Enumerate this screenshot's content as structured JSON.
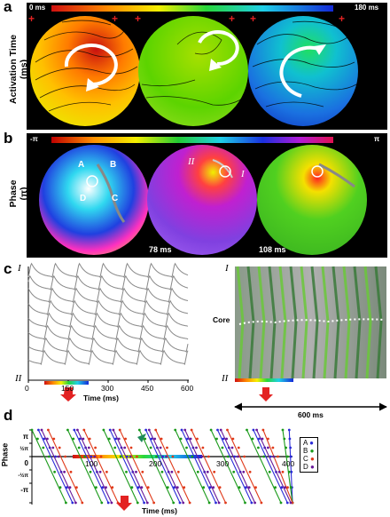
{
  "panels": {
    "a": {
      "letter": "a",
      "ylabel_line1": "Activation Time",
      "ylabel_line2": "(ms)",
      "scale_min": "0 ms",
      "scale_max": "180 ms",
      "stim_marker": "+"
    },
    "b": {
      "letter": "b",
      "ylabel_line1": "Phase",
      "ylabel_line2": "(π)",
      "scale_min": "-π",
      "scale_max": "π",
      "site_labels": [
        "A",
        "B",
        "C",
        "D"
      ],
      "roman_1": "I",
      "roman_2": "II",
      "time_2": "78 ms",
      "time_3": "108 ms"
    },
    "c": {
      "letter": "c",
      "top_label": "I",
      "bottom_label": "II",
      "xlabel": "Time (ms)",
      "core_label": "Core",
      "duration_label": "600 ms"
    },
    "d": {
      "letter": "d",
      "ylabel": "Phase",
      "xlabel": "Time (ms)",
      "legend": [
        "A",
        "B",
        "C",
        "D"
      ]
    }
  },
  "colors": {
    "A": "#2b2bd8",
    "B": "#1a9a1a",
    "C": "#e03a1a",
    "D": "#6a1a9a",
    "arrow": "#e32222",
    "green_arrow": "#1e8a5a"
  },
  "chart_data": [
    {
      "type": "line",
      "panel": "c-left",
      "x_ticks": [
        "0",
        "150",
        "300",
        "450",
        "600"
      ],
      "xlim": [
        0,
        600
      ],
      "series_count": 8,
      "cycle_length_ms": 90
    },
    {
      "type": "line",
      "panel": "d",
      "x_ticks": [
        "100",
        "200",
        "300",
        "400"
      ],
      "xlim": [
        0,
        400
      ],
      "y_ticks": [
        "π",
        "½π",
        "0",
        "-½π",
        "-π"
      ],
      "ylim": [
        -3.14,
        3.14
      ],
      "series": [
        {
          "name": "A",
          "first_crossing_ms": 10
        },
        {
          "name": "B",
          "first_crossing_ms": 0
        },
        {
          "name": "C",
          "first_crossing_ms": 25
        },
        {
          "name": "D",
          "first_crossing_ms": 15
        }
      ],
      "cycle_length_ms": 55
    }
  ]
}
